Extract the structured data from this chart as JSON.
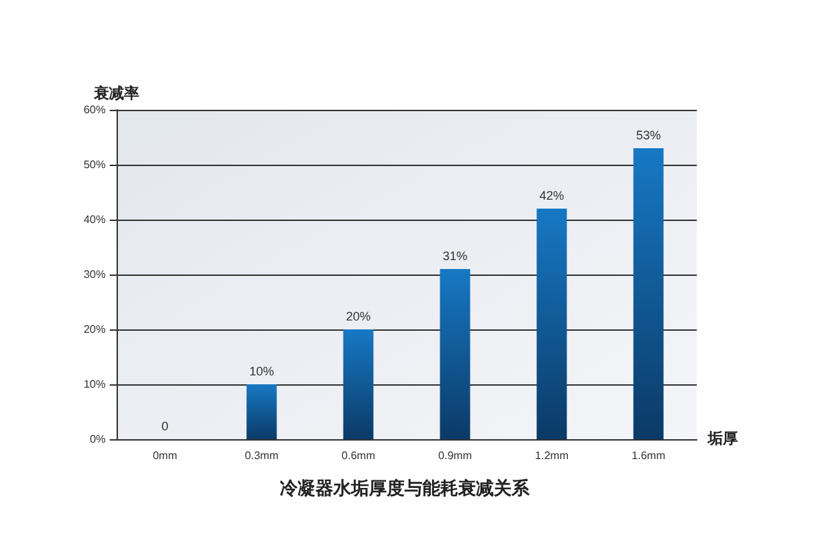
{
  "chart_data": {
    "type": "bar",
    "title": "冷凝器水垢厚度与能耗衰减关系",
    "xlabel": "垢厚",
    "ylabel": "衰减率",
    "categories": [
      "0mm",
      "0.3mm",
      "0.6mm",
      "0.9mm",
      "1.2mm",
      "1.6mm"
    ],
    "values": [
      0,
      10,
      20,
      31,
      42,
      53
    ],
    "value_labels": [
      "0",
      "10%",
      "20%",
      "31%",
      "42%",
      "53%"
    ],
    "color": "#1778c4",
    "ylim": [
      0,
      60
    ],
    "yticks": [
      {
        "value": 0,
        "label": "0%"
      },
      {
        "value": 10,
        "label": "10%"
      },
      {
        "value": 20,
        "label": "20%"
      },
      {
        "value": 30,
        "label": "30%"
      },
      {
        "value": 40,
        "label": "40%"
      },
      {
        "value": 50,
        "label": "50%"
      },
      {
        "value": 60,
        "label": "60%"
      }
    ],
    "grid": "y"
  }
}
